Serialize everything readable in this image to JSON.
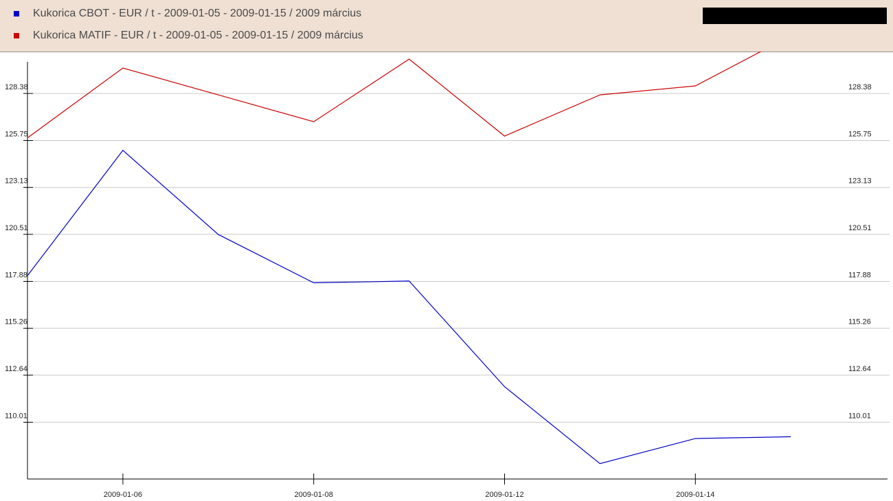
{
  "legend": {
    "items": [
      {
        "label": "Kukorica CBOT - EUR / t - 2009-01-05 - 2009-01-15 / 2009 március",
        "color": "#0000cc"
      },
      {
        "label": "Kukorica MATIF - EUR / t - 2009-01-05 - 2009-01-15 / 2009 március",
        "color": "#cc0000"
      }
    ]
  },
  "chart_data": {
    "type": "line",
    "title": "",
    "xlabel": "",
    "ylabel": "",
    "x": [
      "2009-01-05",
      "2009-01-06",
      "2009-01-07",
      "2009-01-08",
      "2009-01-09",
      "2009-01-12",
      "2009-01-13",
      "2009-01-14",
      "2009-01-15"
    ],
    "x_tick_labels": [
      "2009-01-06",
      "2009-01-08",
      "2009-01-12",
      "2009-01-14"
    ],
    "y_ticks": [
      "110.01",
      "112.64",
      "115.26",
      "117.88",
      "120.51",
      "123.13",
      "125.75",
      "128.38"
    ],
    "ylim": [
      107.3,
      129.8
    ],
    "grid": true,
    "legend_position": "top",
    "series": [
      {
        "name": "Kukorica CBOT - EUR / t - 2009-01-05 - 2009-01-15 / 2009 március",
        "color": "#0000cc",
        "values": [
          118.2,
          125.2,
          120.5,
          117.8,
          117.9,
          112.0,
          107.7,
          109.1,
          109.2
        ]
      },
      {
        "name": "Kukorica MATIF - EUR / t - 2009-01-05 - 2009-01-15 / 2009 március",
        "color": "#cc0000",
        "values": [
          125.9,
          129.8,
          128.3,
          126.8,
          130.3,
          126.0,
          128.3,
          128.8,
          131.6
        ]
      }
    ]
  }
}
